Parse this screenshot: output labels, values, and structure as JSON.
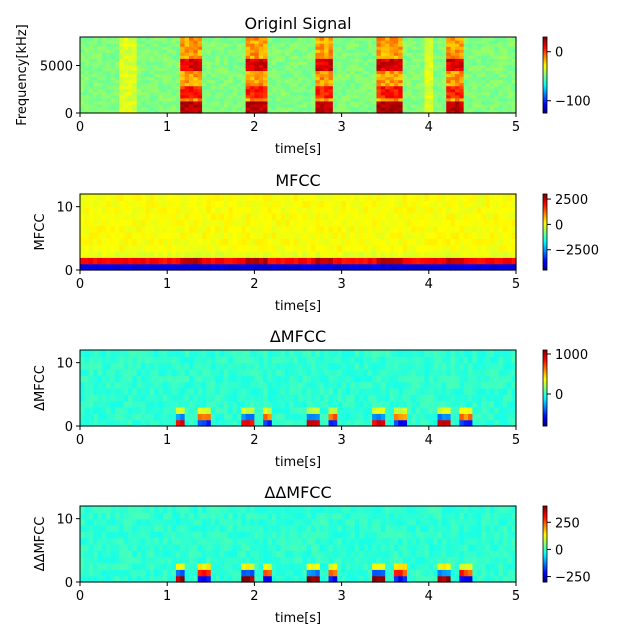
{
  "chart_data": [
    {
      "type": "heatmap",
      "title": "Originl Signal",
      "xlabel": "time[s]",
      "ylabel": "Frequency[kHz]",
      "xlim": [
        0,
        5
      ],
      "ylim": [
        0,
        8000
      ],
      "xticks": [
        "0",
        "1",
        "2",
        "3",
        "4",
        "5"
      ],
      "xtick_values": [
        0,
        1,
        2,
        3,
        4,
        5
      ],
      "yticks": [
        "0",
        "5000"
      ],
      "ytick_values": [
        0,
        5000
      ],
      "colormap": "jet",
      "colorbar": {
        "range": [
          -125,
          30
        ],
        "ticks": [
          "0",
          "−100"
        ],
        "tick_values": [
          0,
          -100
        ]
      },
      "features": {
        "bursts": [
          {
            "t_start": 1.15,
            "t_end": 1.42
          },
          {
            "t_start": 1.92,
            "t_end": 2.15
          },
          {
            "t_start": 2.68,
            "t_end": 2.9
          },
          {
            "t_start": 3.42,
            "t_end": 3.68
          },
          {
            "t_start": 4.18,
            "t_end": 4.42
          }
        ]
      }
    },
    {
      "type": "heatmap",
      "title": "MFCC",
      "xlabel": "time[s]",
      "ylabel": "MFCC",
      "xlim": [
        0,
        5
      ],
      "ylim": [
        0,
        12
      ],
      "xticks": [
        "0",
        "1",
        "2",
        "3",
        "4",
        "5"
      ],
      "xtick_values": [
        0,
        1,
        2,
        3,
        4,
        5
      ],
      "yticks": [
        "0",
        "10"
      ],
      "ytick_values": [
        0,
        10
      ],
      "colormap": "jet",
      "colorbar": {
        "range": [
          -4500,
          3000
        ],
        "ticks": [
          "2500",
          "0",
          "−2500"
        ],
        "tick_values": [
          2500,
          0,
          -2500
        ]
      }
    },
    {
      "type": "heatmap",
      "title": "ΔMFCC",
      "xlabel": "time[s]",
      "ylabel": "ΔMFCC",
      "xlim": [
        0,
        5
      ],
      "ylim": [
        0,
        12
      ],
      "xticks": [
        "0",
        "1",
        "2",
        "3",
        "4",
        "5"
      ],
      "xtick_values": [
        0,
        1,
        2,
        3,
        4,
        5
      ],
      "yticks": [
        "0",
        "10"
      ],
      "ytick_values": [
        0,
        10
      ],
      "colormap": "jet",
      "colorbar": {
        "range": [
          -800,
          1100
        ],
        "ticks": [
          "1000",
          "0"
        ],
        "tick_values": [
          1000,
          0
        ]
      }
    },
    {
      "type": "heatmap",
      "title": "ΔΔMFCC",
      "xlabel": "time[s]",
      "ylabel": "ΔΔMFCC",
      "xlim": [
        0,
        5
      ],
      "ylim": [
        0,
        12
      ],
      "xticks": [
        "0",
        "1",
        "2",
        "3",
        "4",
        "5"
      ],
      "xtick_values": [
        0,
        1,
        2,
        3,
        4,
        5
      ],
      "yticks": [
        "0",
        "10"
      ],
      "ytick_values": [
        0,
        10
      ],
      "colormap": "jet",
      "colorbar": {
        "range": [
          -300,
          400
        ],
        "ticks": [
          "250",
          "0",
          "−250"
        ],
        "tick_values": [
          250,
          0,
          -250
        ]
      }
    }
  ]
}
